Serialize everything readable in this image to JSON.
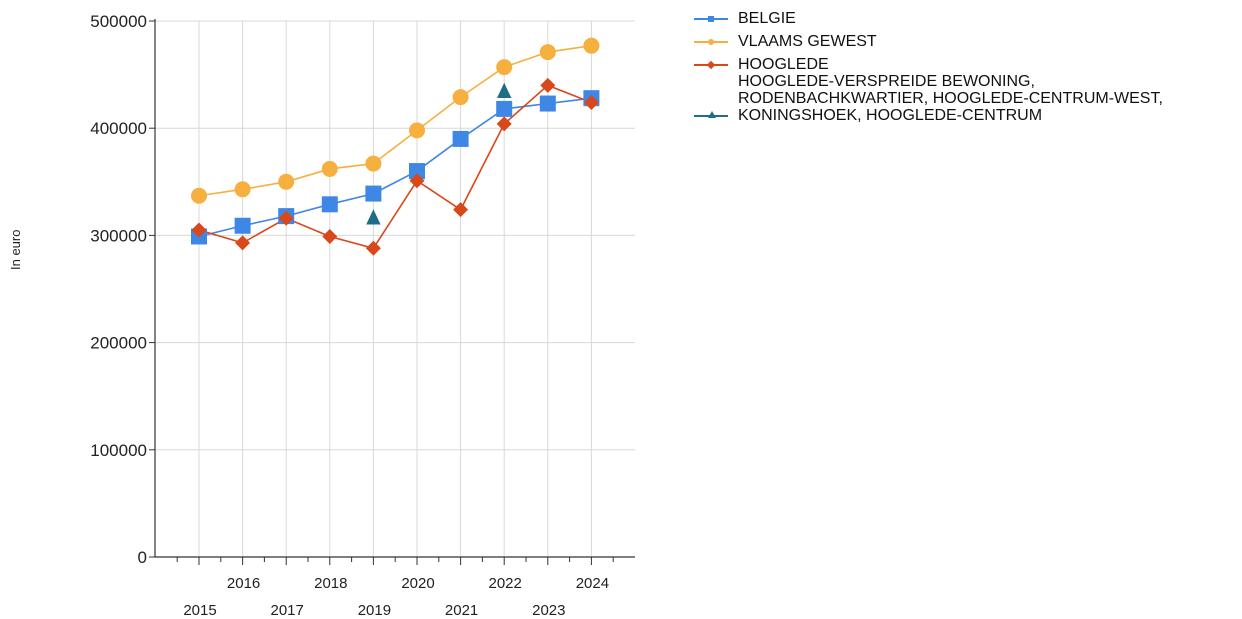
{
  "chart_data": {
    "type": "line",
    "title": "",
    "xlabel": "",
    "ylabel": "In euro",
    "categories": [
      "2015",
      "2016",
      "2017",
      "2018",
      "2019",
      "2020",
      "2021",
      "2022",
      "2023",
      "2024"
    ],
    "ylim": [
      0,
      500000
    ],
    "yticks": [
      "0",
      "100000",
      "200000",
      "300000",
      "400000",
      "500000"
    ],
    "grid": true,
    "legend_position": "top-right",
    "series": [
      {
        "name": "BELGIE",
        "color": "#3f87e4",
        "marker": "square",
        "values": [
          299000,
          309000,
          318000,
          329000,
          339000,
          360000,
          390000,
          418000,
          423000,
          428000
        ]
      },
      {
        "name": "VLAAMS GEWEST",
        "color": "#f5b040",
        "marker": "circle",
        "values": [
          337000,
          343000,
          350000,
          362000,
          367000,
          398000,
          429000,
          457000,
          471000,
          477000
        ]
      },
      {
        "name": "HOOGLEDE",
        "color": "#d9481a",
        "marker": "diamond",
        "values": [
          305000,
          293000,
          316000,
          299000,
          288000,
          351000,
          324000,
          404000,
          440000,
          424000
        ]
      },
      {
        "name": "HOOGLEDE-VERSPREIDE BEWONING,\nRODENBACHKWARTIER, HOOGLEDE-CENTRUM-WEST,\nKONINGSHOEK, HOOGLEDE-CENTRUM",
        "color": "#1e6f86",
        "marker": "triangle",
        "values": [
          null,
          null,
          null,
          null,
          316000,
          null,
          null,
          434000,
          null,
          null
        ]
      }
    ]
  }
}
